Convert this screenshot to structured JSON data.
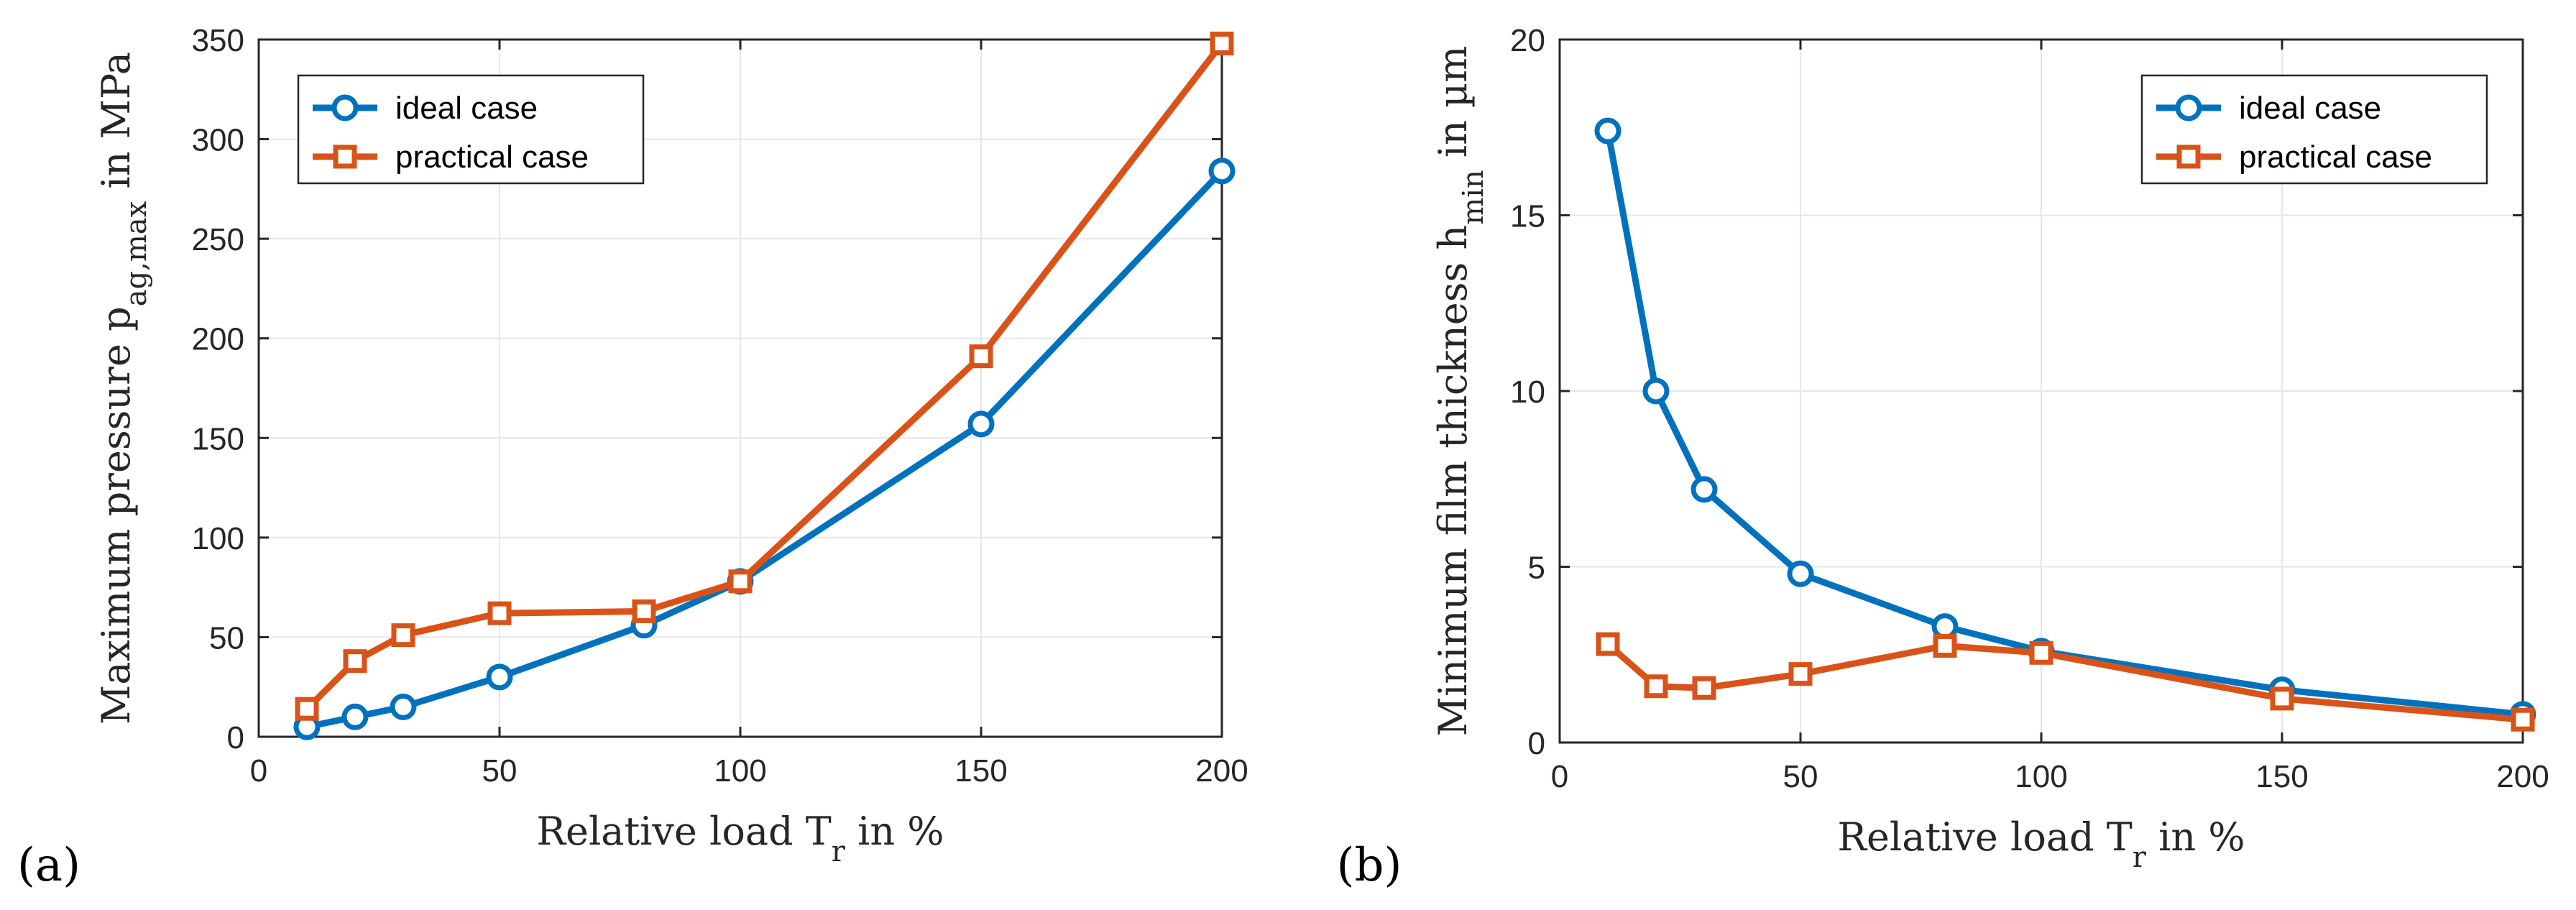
{
  "colors": {
    "ideal": "#0072BD",
    "practical": "#D95319",
    "grid": "#e6e6e6",
    "axis": "#262626"
  },
  "chart_data": [
    {
      "type": "line",
      "panel_label": "(a)",
      "xlabel": {
        "main": "Relative load T",
        "sub": "r",
        "tail": " in %"
      },
      "ylabel": {
        "main": "Maximum pressure p",
        "sub": "ag,max",
        "tail": " in MPa"
      },
      "xlim": [
        0,
        200
      ],
      "ylim": [
        0,
        350
      ],
      "xticks": [
        0,
        50,
        100,
        150,
        200
      ],
      "yticks": [
        0,
        50,
        100,
        150,
        200,
        250,
        300,
        350
      ],
      "grid": true,
      "legend_position": "top-left",
      "series": [
        {
          "name": "ideal case",
          "marker": "circle",
          "x": [
            10,
            20,
            30,
            50,
            80,
            100,
            150,
            200
          ],
          "y": [
            5,
            10,
            15,
            30,
            56,
            78,
            157,
            284
          ]
        },
        {
          "name": "practical case",
          "marker": "square",
          "x": [
            10,
            20,
            30,
            50,
            80,
            100,
            150,
            200
          ],
          "y": [
            14,
            38,
            51,
            62,
            63,
            78,
            191,
            348
          ]
        }
      ]
    },
    {
      "type": "line",
      "panel_label": "(b)",
      "xlabel": {
        "main": "Relative load T",
        "sub": "r",
        "tail": " in %"
      },
      "ylabel": {
        "main": "Minimum film thickness h",
        "sub": "min",
        "tail": " in µm"
      },
      "xlim": [
        0,
        200
      ],
      "ylim": [
        0,
        20
      ],
      "xticks": [
        0,
        50,
        100,
        150,
        200
      ],
      "yticks": [
        0,
        5,
        10,
        15,
        20
      ],
      "grid": true,
      "legend_position": "top-right",
      "series": [
        {
          "name": "ideal case",
          "marker": "circle",
          "x": [
            10,
            20,
            30,
            50,
            80,
            100,
            150,
            200
          ],
          "y": [
            17.4,
            10.0,
            7.2,
            4.8,
            3.3,
            2.6,
            1.5,
            0.8
          ]
        },
        {
          "name": "practical case",
          "marker": "square",
          "x": [
            10,
            20,
            30,
            50,
            80,
            100,
            150,
            200
          ],
          "y": [
            2.8,
            1.6,
            1.55,
            1.95,
            2.75,
            2.55,
            1.25,
            0.65
          ]
        }
      ]
    }
  ]
}
